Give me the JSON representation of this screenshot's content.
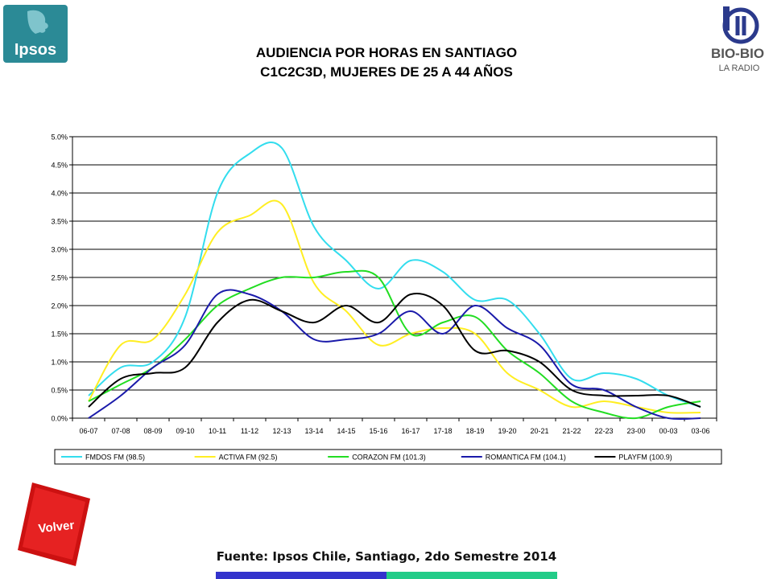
{
  "logos": {
    "ipsos_text": "Ipsos",
    "biobio_text": "BIO-BIO",
    "biobio_sub": "LA RADIO"
  },
  "header": {
    "title_line1": "AUDIENCIA POR HORAS EN SANTIAGO",
    "title_line2": "C1C2C3D, MUJERES DE 25 A 44 AÑOS"
  },
  "nav": {
    "volver_label": "Volver"
  },
  "footer": {
    "source": "Fuente: Ipsos Chile, Santiago, 2do Semestre 2014",
    "bar_colors": [
      "#3333cc",
      "#22cc88"
    ]
  },
  "chart_data": {
    "type": "line",
    "title": "",
    "xlabel": "",
    "ylabel": "",
    "ylim": [
      0,
      0.05
    ],
    "y_ticks": [
      "0.0%",
      "0.5%",
      "1.0%",
      "1.5%",
      "2.0%",
      "2.5%",
      "3.0%",
      "3.5%",
      "4.0%",
      "4.5%",
      "5.0%"
    ],
    "grid": true,
    "legend_position": "bottom",
    "categories": [
      "06-07",
      "07-08",
      "08-09",
      "09-10",
      "10-11",
      "11-12",
      "12-13",
      "13-14",
      "14-15",
      "15-16",
      "16-17",
      "17-18",
      "18-19",
      "19-20",
      "20-21",
      "21-22",
      "22-23",
      "23-00",
      "00-03",
      "03-06"
    ],
    "series": [
      {
        "name": "FMDOS FM (98.5)",
        "color": "#33ddee",
        "values": [
          0.004,
          0.009,
          0.01,
          0.018,
          0.04,
          0.047,
          0.048,
          0.034,
          0.028,
          0.023,
          0.028,
          0.026,
          0.021,
          0.021,
          0.015,
          0.007,
          0.008,
          0.007,
          0.004,
          0.002
        ]
      },
      {
        "name": "ACTIVA FM (92.5)",
        "color": "#ffee22",
        "values": [
          0.003,
          0.013,
          0.014,
          0.022,
          0.033,
          0.036,
          0.038,
          0.024,
          0.019,
          0.013,
          0.015,
          0.016,
          0.015,
          0.008,
          0.005,
          0.002,
          0.003,
          0.002,
          0.001,
          0.001
        ]
      },
      {
        "name": "CORAZON FM (101.3)",
        "color": "#22dd22",
        "values": [
          0.003,
          0.006,
          0.009,
          0.014,
          0.02,
          0.023,
          0.025,
          0.025,
          0.026,
          0.025,
          0.015,
          0.017,
          0.018,
          0.012,
          0.008,
          0.003,
          0.001,
          0.0,
          0.002,
          0.003
        ]
      },
      {
        "name": "ROMANTICA FM (104.1)",
        "color": "#1a1aaa",
        "values": [
          0.0,
          0.004,
          0.009,
          0.013,
          0.022,
          0.022,
          0.019,
          0.014,
          0.014,
          0.015,
          0.019,
          0.015,
          0.02,
          0.016,
          0.013,
          0.006,
          0.005,
          0.002,
          0.0,
          0.0
        ]
      },
      {
        "name": "PLAYFM (100.9)",
        "color": "#000000",
        "values": [
          0.002,
          0.007,
          0.008,
          0.009,
          0.017,
          0.021,
          0.019,
          0.017,
          0.02,
          0.017,
          0.022,
          0.02,
          0.012,
          0.012,
          0.01,
          0.005,
          0.004,
          0.004,
          0.004,
          0.002
        ]
      }
    ]
  }
}
